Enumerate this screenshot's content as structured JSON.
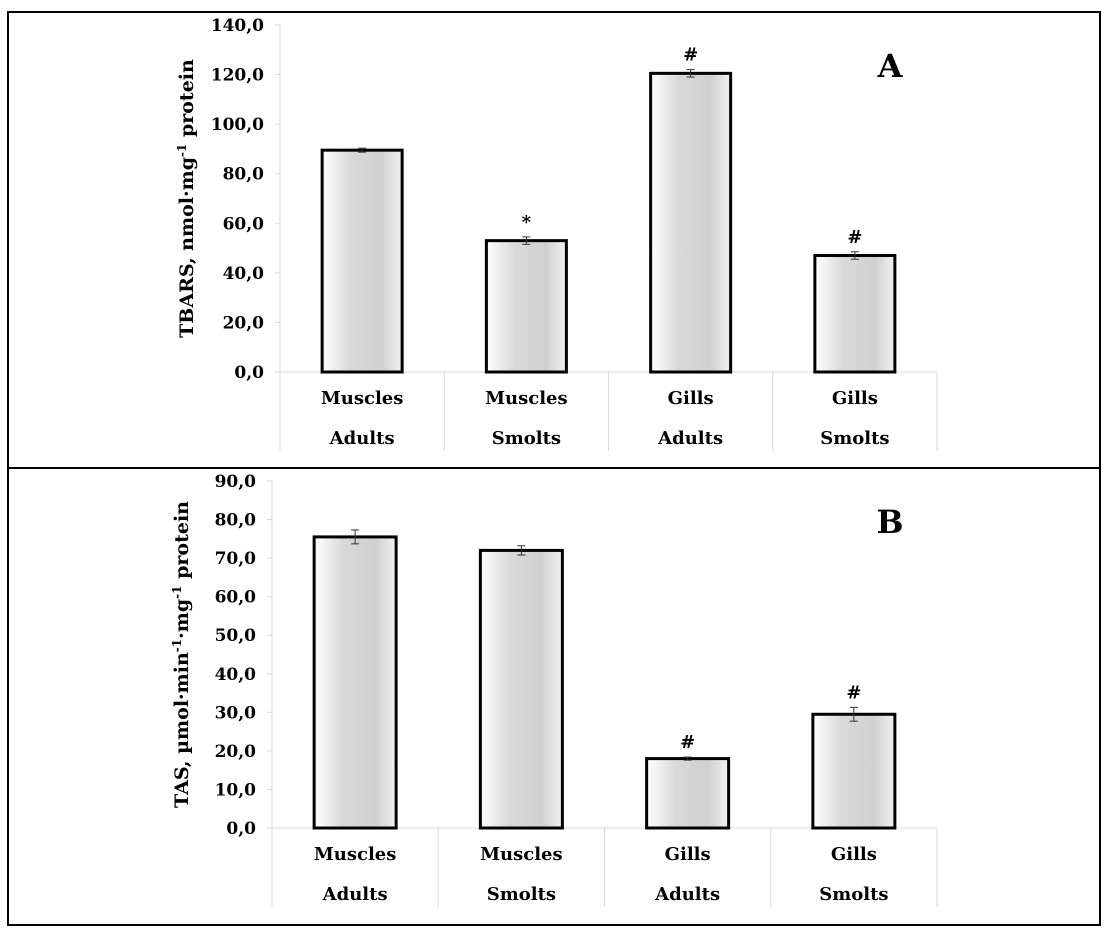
{
  "chart_data": [
    {
      "type": "bar",
      "panel_label": "A",
      "ylabel_main": "TBARS, nmol·mg",
      "ylabel_sup": "-1",
      "ylabel_tail": " protein",
      "categories": [
        {
          "top": "Muscles",
          "bottom": "Adults"
        },
        {
          "top": "Muscles",
          "bottom": "Smolts"
        },
        {
          "top": "Gills",
          "bottom": "Adults"
        },
        {
          "top": "Gills",
          "bottom": "Smolts"
        }
      ],
      "values": [
        89.5,
        53.0,
        120.5,
        47.0
      ],
      "errors": [
        0.8,
        1.5,
        1.5,
        1.5
      ],
      "annotations": [
        "",
        "*",
        "#",
        "#"
      ],
      "ylim": [
        0,
        140
      ],
      "yticks": [
        0,
        20,
        40,
        60,
        80,
        100,
        120,
        140
      ],
      "ytick_labels": [
        "0,0",
        "20,0",
        "40,0",
        "60,0",
        "80,0",
        "100,0",
        "120,0",
        "140,0"
      ],
      "grid": false
    },
    {
      "type": "bar",
      "panel_label": "B",
      "ylabel_main": "TAS, µmol·min",
      "ylabel_sup": "-1",
      "ylabel_mid": "·mg",
      "ylabel_sup2": "-1",
      "ylabel_tail": " protein",
      "categories": [
        {
          "top": "Muscles",
          "bottom": "Adults"
        },
        {
          "top": "Muscles",
          "bottom": "Smolts"
        },
        {
          "top": "Gills",
          "bottom": "Adults"
        },
        {
          "top": "Gills",
          "bottom": "Smolts"
        }
      ],
      "values": [
        75.5,
        72.0,
        18.0,
        29.5
      ],
      "errors": [
        1.8,
        1.2,
        0.4,
        1.8
      ],
      "annotations": [
        "",
        "",
        "#",
        "#"
      ],
      "ylim": [
        0,
        90
      ],
      "yticks": [
        0,
        10,
        20,
        30,
        40,
        50,
        60,
        70,
        80,
        90
      ],
      "ytick_labels": [
        "0,0",
        "10,0",
        "20,0",
        "30,0",
        "40,0",
        "50,0",
        "60,0",
        "70,0",
        "80,0",
        "90,0"
      ],
      "grid": false
    }
  ]
}
